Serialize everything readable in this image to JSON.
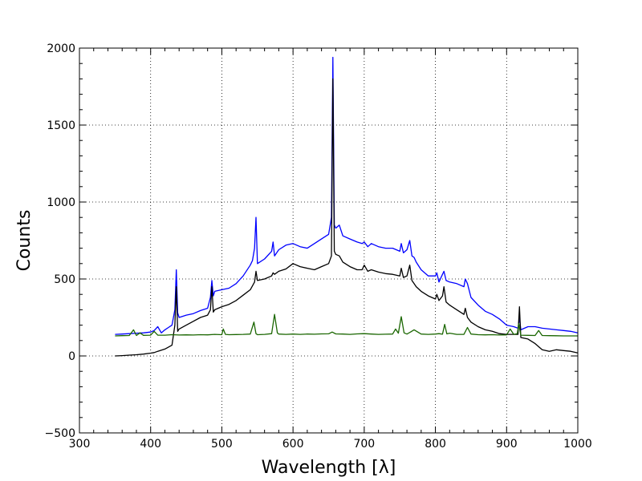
{
  "chart_data": {
    "type": "line",
    "title": "",
    "xlabel": "Wavelength [λ]",
    "ylabel": "Counts",
    "xlim": [
      300,
      1000
    ],
    "ylim": [
      -500,
      2000
    ],
    "xticks": [
      300,
      400,
      500,
      600,
      700,
      800,
      900,
      1000
    ],
    "yticks": [
      -500,
      0,
      500,
      1000,
      1500,
      2000
    ],
    "grid": true,
    "grid_style": "dotted",
    "legend": "none",
    "series": [
      {
        "color": "#0000ff",
        "x": [
          350,
          360,
          370,
          380,
          390,
          400,
          405,
          410,
          415,
          420,
          425,
          430,
          434,
          436,
          438,
          440,
          450,
          460,
          470,
          480,
          484,
          486,
          488,
          490,
          500,
          510,
          520,
          530,
          540,
          543,
          546,
          548,
          550,
          560,
          570,
          572,
          574,
          580,
          590,
          600,
          610,
          620,
          630,
          640,
          650,
          654,
          656,
          658,
          660,
          665,
          670,
          680,
          690,
          697,
          700,
          705,
          710,
          720,
          730,
          740,
          750,
          752,
          755,
          760,
          764,
          767,
          770,
          773,
          780,
          790,
          800,
          802,
          805,
          810,
          812,
          815,
          820,
          830,
          840,
          842,
          845,
          850,
          860,
          870,
          880,
          890,
          900,
          910,
          916,
          918,
          920,
          930,
          940,
          950,
          960,
          970,
          980,
          990,
          1000
        ],
        "y": [
          140,
          142,
          145,
          148,
          150,
          155,
          165,
          190,
          150,
          170,
          185,
          200,
          300,
          560,
          280,
          250,
          265,
          275,
          295,
          310,
          380,
          490,
          390,
          420,
          430,
          440,
          470,
          520,
          590,
          620,
          700,
          900,
          600,
          630,
          680,
          740,
          650,
          690,
          720,
          730,
          710,
          700,
          730,
          760,
          790,
          900,
          1940,
          850,
          830,
          850,
          780,
          760,
          740,
          730,
          740,
          710,
          730,
          710,
          700,
          700,
          680,
          730,
          670,
          690,
          750,
          650,
          640,
          610,
          560,
          520,
          520,
          540,
          480,
          530,
          550,
          490,
          480,
          470,
          450,
          500,
          470,
          380,
          330,
          290,
          270,
          240,
          200,
          190,
          180,
          250,
          170,
          190,
          190,
          180,
          175,
          170,
          165,
          160,
          150
        ]
      },
      {
        "color": "#000000",
        "x": [
          350,
          360,
          370,
          380,
          390,
          400,
          405,
          410,
          420,
          430,
          434,
          436,
          438,
          440,
          450,
          460,
          470,
          480,
          484,
          486,
          488,
          490,
          500,
          510,
          520,
          530,
          540,
          543,
          546,
          548,
          550,
          560,
          570,
          572,
          574,
          580,
          590,
          600,
          610,
          620,
          630,
          640,
          650,
          654,
          656,
          658,
          660,
          665,
          670,
          680,
          690,
          697,
          700,
          705,
          710,
          720,
          730,
          740,
          750,
          752,
          755,
          760,
          764,
          767,
          770,
          773,
          780,
          790,
          800,
          802,
          805,
          810,
          812,
          815,
          820,
          830,
          840,
          842,
          845,
          850,
          860,
          870,
          880,
          890,
          900,
          910,
          916,
          918,
          920,
          930,
          940,
          950,
          960,
          970,
          980,
          990,
          1000
        ],
        "y": [
          0,
          2,
          5,
          8,
          12,
          18,
          22,
          30,
          45,
          70,
          200,
          450,
          160,
          175,
          200,
          225,
          250,
          265,
          300,
          450,
          285,
          300,
          320,
          335,
          360,
          395,
          430,
          455,
          480,
          550,
          490,
          500,
          520,
          540,
          530,
          550,
          565,
          600,
          580,
          570,
          560,
          580,
          600,
          650,
          1800,
          680,
          660,
          650,
          610,
          580,
          560,
          560,
          590,
          550,
          560,
          545,
          535,
          530,
          520,
          570,
          510,
          520,
          590,
          490,
          470,
          450,
          420,
          390,
          370,
          400,
          360,
          390,
          450,
          350,
          330,
          300,
          270,
          310,
          250,
          220,
          190,
          170,
          160,
          145,
          140,
          140,
          140,
          320,
          120,
          110,
          80,
          40,
          30,
          40,
          35,
          30,
          20
        ]
      },
      {
        "color": "#1a6600",
        "x": [
          350,
          360,
          370,
          376,
          380,
          385,
          390,
          400,
          405,
          410,
          420,
          430,
          440,
          450,
          460,
          470,
          480,
          490,
          500,
          502,
          505,
          510,
          520,
          530,
          540,
          545,
          548,
          550,
          560,
          570,
          574,
          578,
          580,
          590,
          600,
          610,
          620,
          630,
          640,
          650,
          655,
          660,
          670,
          680,
          690,
          700,
          710,
          720,
          730,
          740,
          744,
          748,
          752,
          756,
          760,
          765,
          770,
          780,
          790,
          800,
          805,
          810,
          813,
          816,
          820,
          830,
          840,
          845,
          850,
          860,
          870,
          880,
          890,
          900,
          905,
          910,
          915,
          917,
          920,
          930,
          940,
          945,
          950,
          960,
          970,
          980,
          990,
          1000
        ],
        "y": [
          130,
          132,
          133,
          170,
          133,
          150,
          134,
          135,
          160,
          135,
          135,
          138,
          136,
          137,
          136,
          138,
          137,
          140,
          138,
          175,
          140,
          138,
          139,
          140,
          142,
          220,
          145,
          138,
          140,
          145,
          270,
          150,
          142,
          140,
          142,
          140,
          142,
          141,
          143,
          144,
          155,
          143,
          142,
          140,
          143,
          145,
          142,
          140,
          141,
          142,
          175,
          148,
          255,
          150,
          142,
          155,
          170,
          142,
          140,
          142,
          145,
          141,
          205,
          143,
          148,
          140,
          140,
          185,
          142,
          138,
          137,
          138,
          136,
          137,
          175,
          140,
          145,
          210,
          135,
          134,
          133,
          165,
          133,
          132,
          131,
          130,
          130,
          130
        ]
      }
    ]
  }
}
